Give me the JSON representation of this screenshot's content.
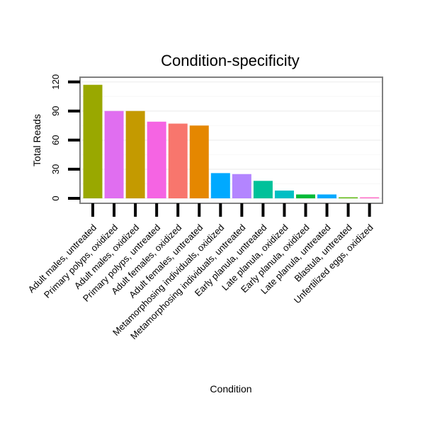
{
  "chart_data": {
    "type": "bar",
    "title": "Condition-specificity",
    "xlabel": "Condition",
    "ylabel": "Total Reads",
    "ylim": [
      0,
      130
    ],
    "yticks": [
      0,
      30,
      60,
      90,
      120
    ],
    "grid": true,
    "categories": [
      "Adult males, untreated",
      "Primary polyps, oxidized",
      "Adult males, oxidized",
      "Primary polyps, untreated",
      "Adult females, oxidized",
      "Adult females, untreated",
      "Metamorphosing individuals, oxidized",
      "Metamorphosing individuals, untreated",
      "Early planula, untreated",
      "Late planula, oxidized",
      "Early planula, oxidized",
      "Late planula, untreated",
      "Blastula, untreated",
      "Unfertilized eggs, oxidized"
    ],
    "values": [
      117,
      90,
      90,
      79,
      77,
      75,
      26,
      25,
      18,
      8,
      4,
      4,
      1,
      1
    ],
    "colors": [
      "#99a800",
      "#e06ef0",
      "#c49a00",
      "#f564e3",
      "#f8766d",
      "#e58700",
      "#00a9ff",
      "#b385ff",
      "#00c19a",
      "#00bfc4",
      "#00ba38",
      "#00a9ff",
      "#53b400",
      "#ff61c3"
    ]
  }
}
